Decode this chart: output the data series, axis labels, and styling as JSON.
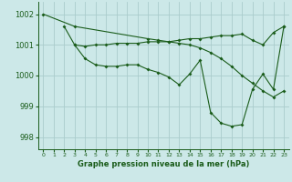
{
  "bg_color": "#cce8e8",
  "grid_color": "#aacccc",
  "line_color": "#1a5c1a",
  "title": "Graphe pression niveau de la mer (hPa)",
  "xlim": [
    -0.5,
    23.5
  ],
  "ylim": [
    997.6,
    1002.4
  ],
  "yticks": [
    998,
    999,
    1000,
    1001,
    1002
  ],
  "xtick_labels": [
    "0",
    "1",
    "2",
    "3",
    "4",
    "5",
    "6",
    "7",
    "8",
    "9",
    "10",
    "11",
    "12",
    "13",
    "14",
    "15",
    "16",
    "17",
    "18",
    "19",
    "20",
    "21",
    "22",
    "23"
  ],
  "series": [
    {
      "x": [
        0,
        3,
        10,
        11,
        12,
        13,
        14,
        15,
        16,
        17,
        18,
        19,
        20,
        21,
        22,
        23
      ],
      "y": [
        1002.0,
        1001.6,
        1001.2,
        1001.15,
        1001.1,
        1001.05,
        1001.0,
        1000.9,
        1000.75,
        1000.55,
        1000.3,
        1000.0,
        999.75,
        999.5,
        999.3,
        999.5
      ]
    },
    {
      "x": [
        2,
        3,
        4,
        5,
        6,
        7,
        8,
        9,
        10,
        11,
        12,
        13,
        14,
        15,
        16,
        17,
        18,
        19,
        20,
        21,
        22,
        23
      ],
      "y": [
        1001.6,
        1001.0,
        1000.95,
        1001.0,
        1001.0,
        1001.05,
        1001.05,
        1001.05,
        1001.1,
        1001.1,
        1001.1,
        1001.15,
        1001.2,
        1001.2,
        1001.25,
        1001.3,
        1001.3,
        1001.35,
        1001.15,
        1001.0,
        1001.4,
        1001.6
      ]
    },
    {
      "x": [
        3,
        4,
        5,
        6,
        7,
        8,
        9,
        10,
        11,
        12,
        13,
        14,
        15,
        16,
        17,
        18,
        19,
        20,
        21,
        22,
        23
      ],
      "y": [
        1001.0,
        1000.55,
        1000.35,
        1000.3,
        1000.3,
        1000.35,
        1000.35,
        1000.2,
        1000.1,
        999.95,
        999.7,
        1000.05,
        1000.5,
        998.8,
        998.45,
        998.35,
        998.4,
        999.55,
        1000.05,
        999.55,
        1001.6
      ]
    }
  ]
}
